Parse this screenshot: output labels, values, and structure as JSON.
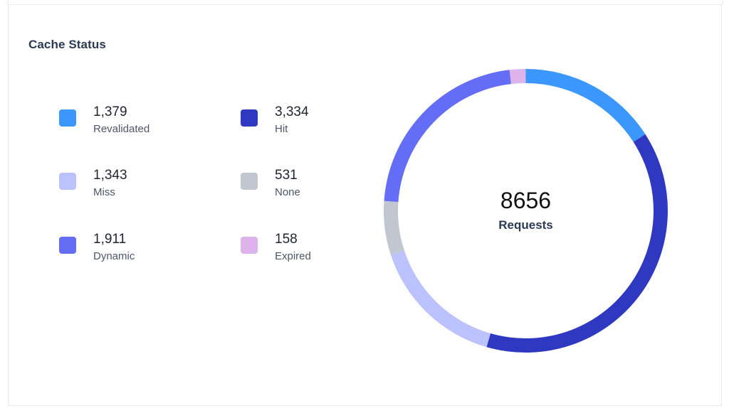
{
  "card": {
    "title": "Cache Status"
  },
  "legend": [
    {
      "value": "1,379",
      "label": "Revalidated",
      "color": "#3b97fb"
    },
    {
      "value": "3,334",
      "label": "Hit",
      "color": "#2f38c0"
    },
    {
      "value": "1,343",
      "label": "Miss",
      "color": "#bcc2fd"
    },
    {
      "value": "531",
      "label": "None",
      "color": "#c0c7d1"
    },
    {
      "value": "1,911",
      "label": "Dynamic",
      "color": "#646df5"
    },
    {
      "value": "158",
      "label": "Expired",
      "color": "#deb2ea"
    }
  ],
  "center": {
    "value": "8656",
    "label": "Requests"
  },
  "chart_data": {
    "type": "pie",
    "variant": "donut",
    "title": "Cache Status",
    "total": 8656,
    "center_label": "Requests",
    "categories": [
      "Revalidated",
      "Hit",
      "Miss",
      "None",
      "Dynamic",
      "Expired"
    ],
    "values": [
      1379,
      3334,
      1343,
      531,
      1911,
      158
    ],
    "colors": [
      "#3b97fb",
      "#2f38c0",
      "#bcc2fd",
      "#c0c7d1",
      "#646df5",
      "#deb2ea"
    ],
    "start_angle": "top (12 o'clock), clockwise",
    "legend_position": "left, 2-column grid"
  }
}
